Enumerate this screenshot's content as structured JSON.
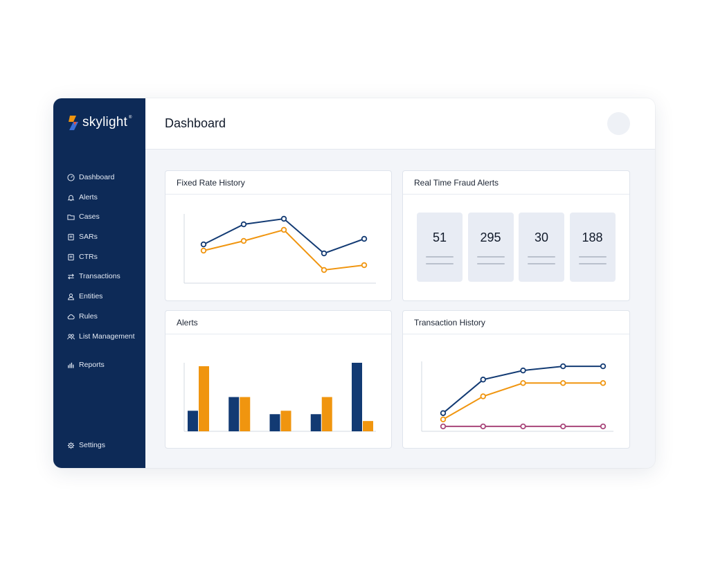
{
  "app": {
    "brand": "skylight",
    "brand_mark": "®",
    "brand_icon": "skylight-logo-icon"
  },
  "colors": {
    "sidebar": "#0d2a57",
    "navy": "#123a73",
    "orange": "#f0950f",
    "magenta": "#a8467a"
  },
  "sidebar": {
    "items": [
      {
        "label": "Dashboard",
        "icon": "dashboard-icon"
      },
      {
        "label": "Alerts",
        "icon": "bell-icon"
      },
      {
        "label": "Cases",
        "icon": "folder-icon"
      },
      {
        "label": "SARs",
        "icon": "document-icon"
      },
      {
        "label": "CTRs",
        "icon": "document-icon"
      },
      {
        "label": "Transactions",
        "icon": "transfer-icon"
      },
      {
        "label": "Entities",
        "icon": "user-icon"
      },
      {
        "label": "Rules",
        "icon": "cloud-icon"
      },
      {
        "label": "List Management",
        "icon": "group-icon"
      },
      {
        "label": "Reports",
        "icon": "bar-chart-icon"
      }
    ],
    "settings": {
      "label": "Settings",
      "icon": "gear-icon"
    }
  },
  "header": {
    "title": "Dashboard"
  },
  "cards": {
    "fixed_rate": {
      "title": "Fixed Rate History"
    },
    "fraud_alerts": {
      "title": "Real Time Fraud Alerts",
      "stats": [
        "51",
        "295",
        "30",
        "188"
      ]
    },
    "alerts": {
      "title": "Alerts"
    },
    "transactions": {
      "title": "Transaction History"
    }
  },
  "chart_data": [
    {
      "type": "line",
      "title": "Fixed Rate History",
      "x": [
        1,
        2,
        3,
        4,
        5
      ],
      "ylim": [
        0,
        100
      ],
      "series": [
        {
          "color": "#123a73",
          "values": [
            56,
            85,
            93,
            43,
            64
          ]
        },
        {
          "color": "#f0950f",
          "values": [
            47,
            61,
            77,
            19,
            26
          ]
        }
      ]
    },
    {
      "type": "bar",
      "title": "Alerts",
      "categories": [
        "1",
        "2",
        "3",
        "4",
        "5"
      ],
      "ylim": [
        0,
        100
      ],
      "series": [
        {
          "color": "#123a73",
          "values": [
            30,
            50,
            25,
            25,
            100
          ]
        },
        {
          "color": "#f0950f",
          "values": [
            95,
            50,
            30,
            50,
            15
          ]
        }
      ]
    },
    {
      "type": "line",
      "title": "Transaction History",
      "x": [
        1,
        2,
        3,
        4,
        5
      ],
      "ylim": [
        0,
        100
      ],
      "series": [
        {
          "color": "#123a73",
          "values": [
            26,
            74,
            87,
            93,
            93
          ]
        },
        {
          "color": "#f0950f",
          "values": [
            17,
            50,
            69,
            69,
            69
          ]
        },
        {
          "color": "#a8467a",
          "values": [
            7,
            7,
            7,
            7,
            7
          ]
        }
      ]
    }
  ]
}
